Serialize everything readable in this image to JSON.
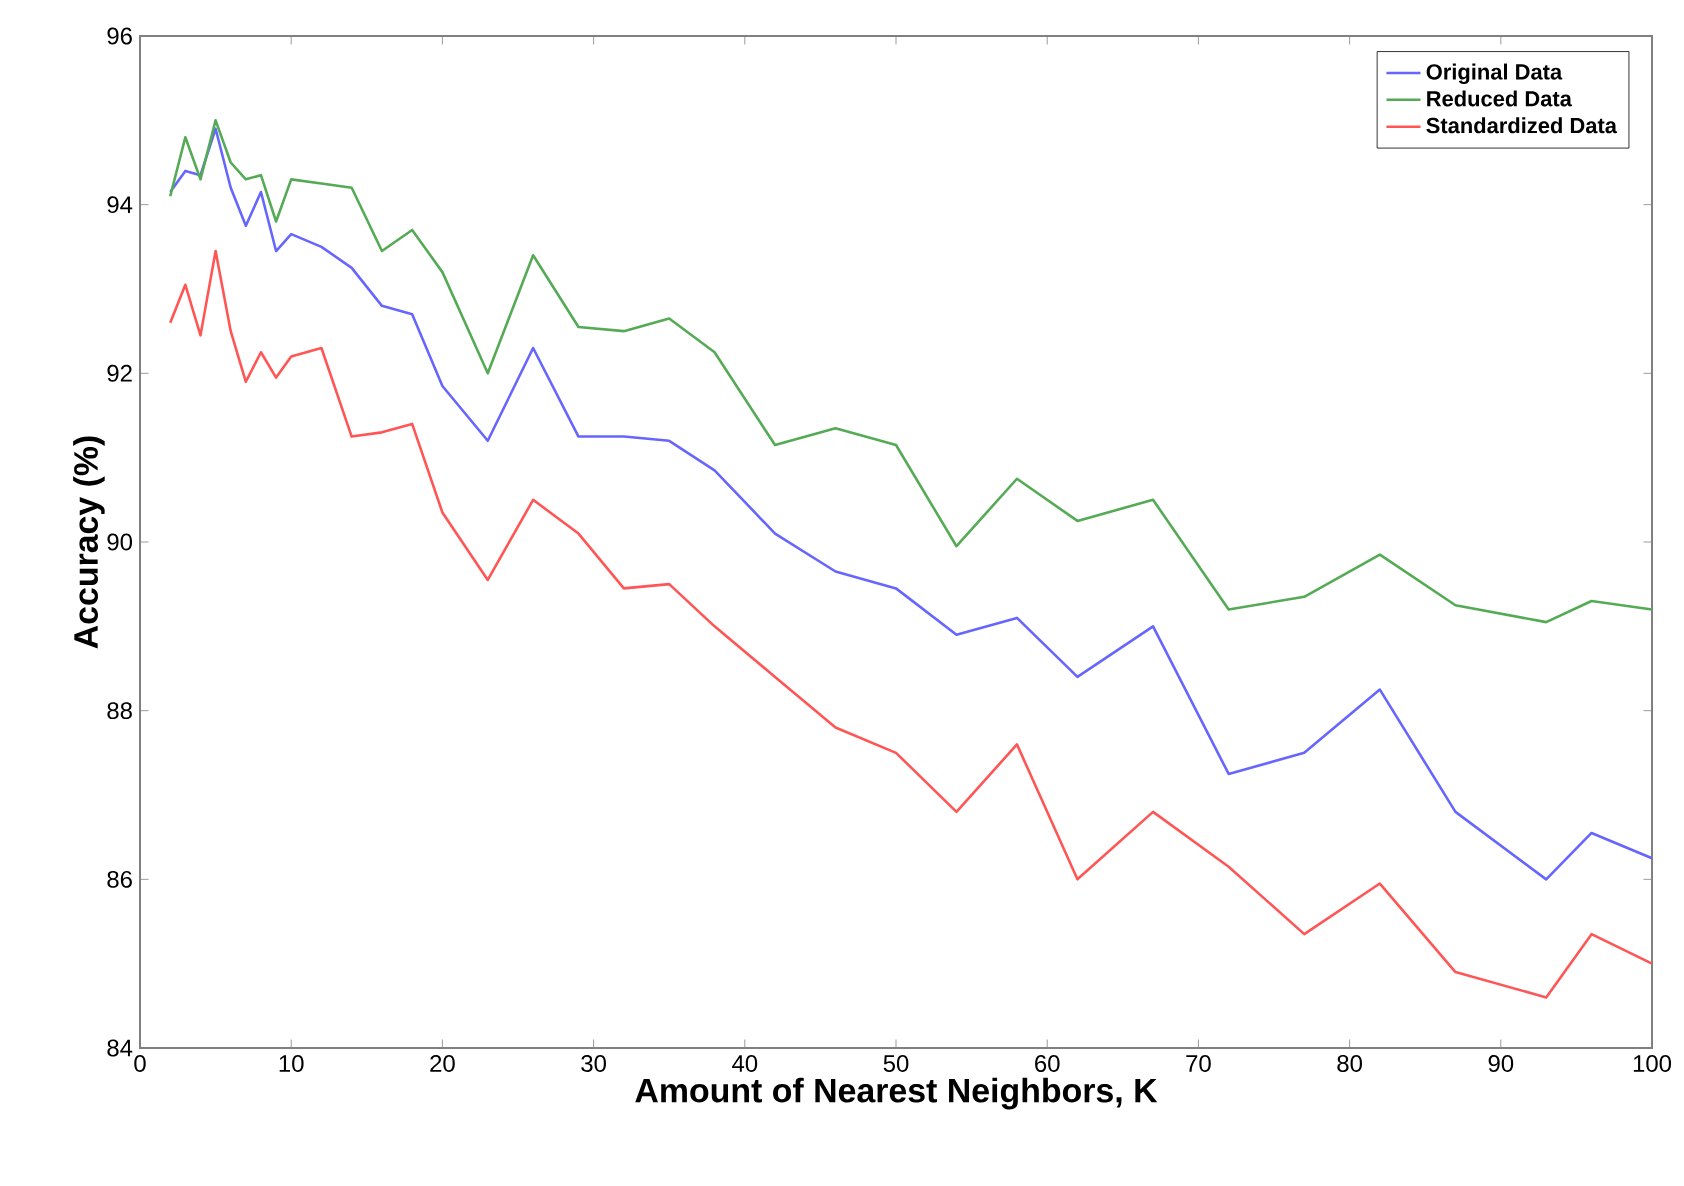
{
  "chart_data": {
    "type": "line",
    "xlabel": "Amount of Nearest Neighbors, K",
    "ylabel": "Accuracy (%)",
    "x": [
      2,
      3,
      4,
      5,
      6,
      7,
      8,
      9,
      10,
      12,
      14,
      16,
      18,
      20,
      23,
      26,
      29,
      32,
      35,
      38,
      42,
      46,
      50,
      54,
      58,
      62,
      67,
      72,
      77,
      82,
      87,
      93,
      96,
      100
    ],
    "series": [
      {
        "name": "Original Data",
        "color": "#6666ff",
        "values": [
          94.15,
          94.4,
          94.35,
          94.9,
          94.2,
          93.75,
          94.15,
          93.45,
          93.65,
          93.5,
          93.25,
          92.8,
          92.7,
          91.85,
          91.2,
          92.3,
          91.25,
          91.25,
          91.2,
          90.85,
          90.1,
          89.65,
          89.45,
          88.9,
          89.1,
          88.4,
          89.0,
          87.25,
          87.5,
          88.25,
          86.8,
          86.0,
          86.55,
          86.25
        ]
      },
      {
        "name": "Reduced Data",
        "color": "#55aa55",
        "values": [
          94.1,
          94.8,
          94.3,
          95.0,
          94.5,
          94.3,
          94.35,
          93.8,
          94.3,
          94.25,
          94.2,
          93.45,
          93.7,
          93.2,
          92.0,
          93.4,
          92.55,
          92.5,
          92.65,
          92.25,
          91.15,
          91.35,
          91.15,
          89.95,
          90.75,
          90.25,
          90.5,
          89.2,
          89.35,
          89.85,
          89.25,
          89.05,
          89.3,
          89.2
        ]
      },
      {
        "name": "Standardized Data",
        "color": "#ff5555",
        "values": [
          92.6,
          93.05,
          92.45,
          93.45,
          92.5,
          91.9,
          92.25,
          91.95,
          92.2,
          92.3,
          91.25,
          91.3,
          91.4,
          90.35,
          89.55,
          90.5,
          90.1,
          89.45,
          89.5,
          89.0,
          88.4,
          87.8,
          87.5,
          86.8,
          87.6,
          86.0,
          86.8,
          86.15,
          85.35,
          85.95,
          84.9,
          84.6,
          85.35,
          85.0
        ]
      }
    ],
    "xlim": [
      0,
      100
    ],
    "xticks": [
      0,
      10,
      20,
      30,
      40,
      50,
      60,
      70,
      80,
      90,
      100
    ],
    "ylim": [
      84,
      96
    ],
    "yticks": [
      84,
      86,
      88,
      90,
      92,
      94,
      96
    ],
    "grid": false,
    "legend": "top right",
    "marker": "none",
    "line_style": "solid"
  }
}
